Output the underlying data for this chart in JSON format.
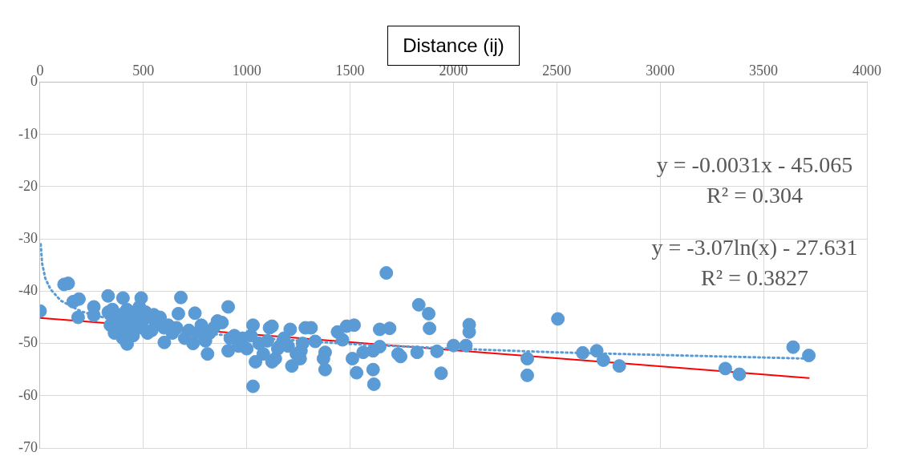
{
  "chart_data": {
    "type": "scatter",
    "title": "Distance (ij)",
    "marker": "circle",
    "grid": true,
    "xlim": [
      0,
      4000
    ],
    "xticks": [
      0,
      500,
      1000,
      1500,
      2000,
      2500,
      3000,
      3500,
      4000
    ],
    "ylim": [
      -70,
      0
    ],
    "yticks": [
      0,
      -10,
      -20,
      -30,
      -40,
      -50,
      -60,
      -70
    ],
    "annotations": [
      "y = -0.0031x - 45.065",
      "R² = 0.304",
      "y = -3.07ln(x) - 27.631",
      "R² = 0.3827"
    ],
    "series": [
      {
        "color": "#5b9bd5",
        "x": [
          0,
          116,
          136,
          160,
          188,
          184,
          260,
          260,
          329,
          401,
          489,
          681,
          910,
          1030,
          421,
          601,
          810,
          669,
          749,
          858,
          910,
          1042,
          1122,
          1030,
          1110,
          1675,
          1832,
          1880,
          1884,
          2076,
          2076,
          2060,
          2000,
          1940,
          1920,
          1824,
          1744,
          1732,
          1691,
          1643,
          1643,
          1611,
          1611,
          1615,
          1563,
          1531,
          1511,
          1519,
          1483,
          1439,
          1463,
          1379,
          1371,
          1379,
          1283,
          1311,
          1331,
          1218,
          1258,
          1262,
          1210,
          1138,
          1122,
          1162,
          2505,
          2357,
          2357,
          2625,
          2693,
          2725,
          2802,
          3315,
          3383,
          3643,
          3719,
          330,
          340,
          350,
          360,
          370,
          380,
          390,
          400,
          410,
          420,
          430,
          440,
          450,
          460,
          470,
          480,
          490,
          500,
          510,
          520,
          540,
          550,
          560,
          580,
          600,
          620,
          640,
          660,
          700,
          720,
          740,
          760,
          780,
          800,
          820,
          840,
          880,
          920,
          940,
          960,
          980,
          1000,
          1020,
          1060,
          1080,
          1100,
          1150,
          1180,
          1200,
          1240,
          1270
        ],
        "values": [
          -43.8,
          -38.7,
          -38.5,
          -42,
          -41.5,
          -45,
          -43,
          -44.6,
          -40.9,
          -41.3,
          -41.3,
          -41.2,
          -43,
          -58.2,
          -50.1,
          -49.8,
          -52,
          -44.3,
          -44.2,
          -45.7,
          -51.4,
          -53.5,
          -53.5,
          -46.5,
          -47,
          -36.5,
          -42.6,
          -44.3,
          -47.1,
          -46.4,
          -47.8,
          -50.4,
          -50.4,
          -55.7,
          -51.5,
          -51.7,
          -52.5,
          -52,
          -47.1,
          -47.3,
          -50.6,
          -51.4,
          -55,
          -57.8,
          -51.7,
          -55.6,
          -52.9,
          -46.5,
          -46.7,
          -47.8,
          -49.3,
          -51.7,
          -52.9,
          -55,
          -47,
          -47,
          -49.6,
          -54.3,
          -52.9,
          -51.4,
          -47.3,
          -52.9,
          -46.7,
          -50.4,
          -45.3,
          -52.9,
          -56.1,
          -51.8,
          -51.4,
          -53.2,
          -54.3,
          -54.8,
          -55.9,
          -50.7,
          -52.3,
          -44,
          -46.5,
          -43.5,
          -48,
          -45,
          -47,
          -44.5,
          -49,
          -46,
          -43.5,
          -47.5,
          -45,
          -48.5,
          -44,
          -46.5,
          -43,
          -47,
          -45.5,
          -44,
          -48,
          -47.5,
          -44.5,
          -46,
          -45,
          -47,
          -46.5,
          -48,
          -47,
          -49,
          -47.5,
          -50,
          -48,
          -46.5,
          -49.5,
          -48,
          -47,
          -46,
          -49,
          -48.5,
          -50.5,
          -49,
          -51,
          -48.5,
          -50,
          -52,
          -49.5,
          -51,
          -49,
          -50.5,
          -52,
          -50
        ]
      },
      {
        "type": "line",
        "color": "#5b9bd5",
        "line_style": "dotted",
        "marker": "none",
        "x": [
          3,
          10,
          25,
          50,
          100,
          200,
          400,
          700,
          1000,
          1500,
          2000,
          2500,
          3000,
          3719
        ],
        "values": [
          -31.0,
          -34.7,
          -37.5,
          -39.6,
          -41.8,
          -43.9,
          -46.0,
          -47.7,
          -48.8,
          -50.1,
          -51.0,
          -51.7,
          -52.2,
          -52.9
        ]
      },
      {
        "type": "line",
        "color": "#ff0000",
        "line_style": "solid",
        "marker": "none",
        "x": [
          0,
          3719
        ],
        "values": [
          -45.1,
          -56.6
        ]
      }
    ]
  }
}
